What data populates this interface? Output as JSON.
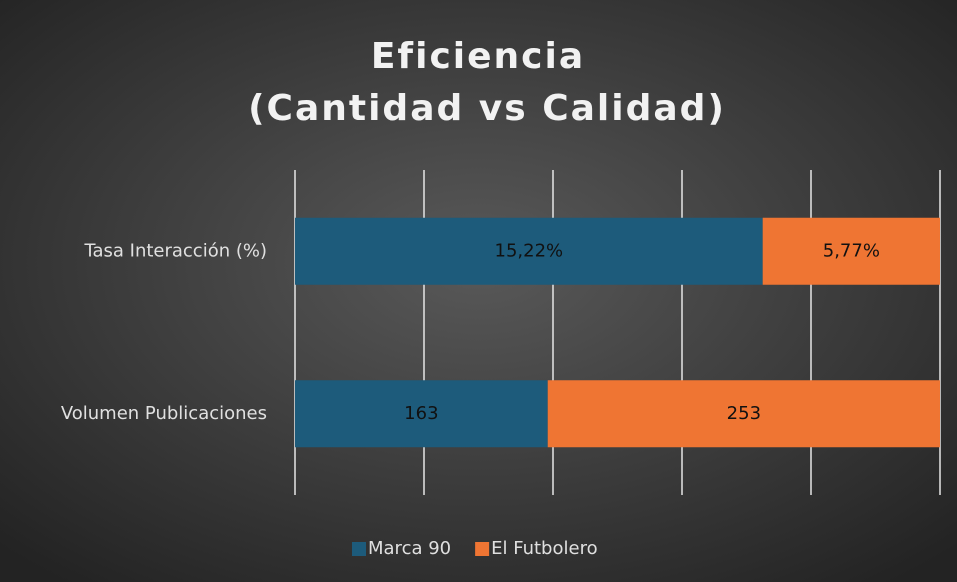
{
  "chart_data": {
    "type": "bar",
    "orientation": "horizontal",
    "stacking": "percent",
    "title": [
      "Eficiencia",
      "(Cantidad vs Calidad)"
    ],
    "categories": [
      "Tasa Interacción (%)",
      "Volumen Publicaciones"
    ],
    "series": [
      {
        "name": "Marca 90",
        "color": "#1d5b7b",
        "values": [
          15.22,
          163
        ],
        "value_labels": [
          "15,22%",
          "163"
        ]
      },
      {
        "name": "El Futbolero",
        "color": "#ef7533",
        "values": [
          5.77,
          253
        ],
        "value_labels": [
          "5,77%",
          "253"
        ]
      }
    ],
    "xlim": [
      0,
      100
    ],
    "xticks": [
      0,
      20,
      40,
      60,
      80,
      100
    ],
    "grid": true,
    "legend": "bottom"
  }
}
